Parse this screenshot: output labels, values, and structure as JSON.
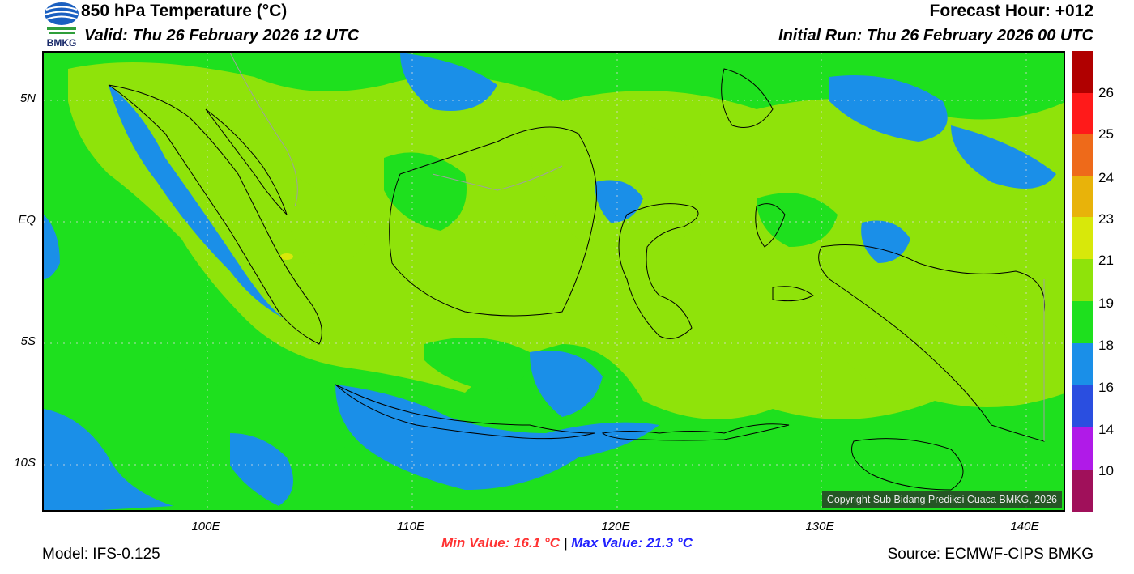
{
  "header": {
    "title": "850 hPa Temperature (°C)",
    "valid": "Valid: Thu 26 February 2026 12 UTC",
    "forecast_hour": "Forecast Hour: +012",
    "initial_run": "Initial Run: Thu 26 February 2026 00 UTC",
    "logo_text": "BMKG"
  },
  "axes": {
    "lat_labels": [
      "5N",
      "EQ",
      "5S",
      "10S"
    ],
    "lon_labels": [
      "100E",
      "110E",
      "120E",
      "130E",
      "140E"
    ]
  },
  "colorbar": {
    "labels": [
      "26",
      "25",
      "24",
      "23",
      "21",
      "19",
      "18",
      "16",
      "14",
      "10"
    ],
    "colors": [
      "#b00000",
      "#ff1a1a",
      "#ee6a1a",
      "#e8b30a",
      "#d8e80a",
      "#8fe30a",
      "#1ee01e",
      "#1a8fe8",
      "#2a4ee0",
      "#b01ae8",
      "#a0105a"
    ]
  },
  "footer": {
    "model": "Model: IFS-0.125",
    "source": "Source: ECMWF-CIPS BMKG",
    "min_value": "Min Value: 16.1 °C",
    "separator": "|",
    "max_value": "Max Value: 21.3 °C",
    "copyright": "Copyright Sub Bidang Prediksi Cuaca BMKG, 2026"
  },
  "colors": {
    "temp_16_18": "#1a8fe8",
    "temp_18_19": "#1ee01e",
    "temp_19_21": "#8fe30a",
    "temp_21_23": "#d8e80a"
  }
}
